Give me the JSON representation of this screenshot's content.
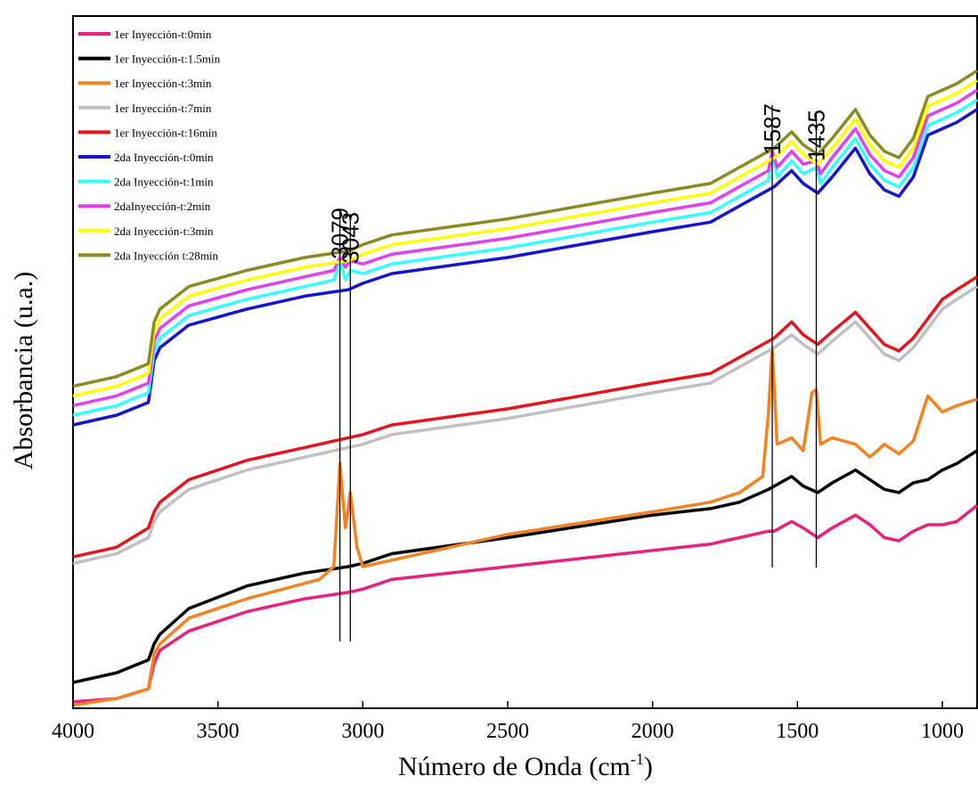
{
  "chart_data": {
    "type": "line",
    "title": "",
    "xlabel": "Número de Onda (cm",
    "xlabel_sup": "-1",
    "xlabel_close": ")",
    "ylabel": "Absorbancia (u.a.)",
    "xlim": [
      4000,
      880
    ],
    "x_reversed": true,
    "xticks": [
      4000,
      3500,
      3000,
      2500,
      2000,
      1500,
      1000
    ],
    "xtick_labels": [
      "4000",
      "3500",
      "3000",
      "2500",
      "2000",
      "1500",
      "1000"
    ],
    "yticks_shown": false,
    "grid": false,
    "legend_position": "top-left",
    "annotations": [
      {
        "x": 3079,
        "label": "3079"
      },
      {
        "x": 3043,
        "label": "3043"
      },
      {
        "x": 1587,
        "label": "1587"
      },
      {
        "x": 1435,
        "label": "1435"
      }
    ],
    "series": [
      {
        "name": "1er Inyección-t:0min",
        "color": "#e8207e",
        "x": [
          4000,
          3850,
          3740,
          3720,
          3700,
          3600,
          3400,
          3200,
          3050,
          3000,
          2900,
          2500,
          2000,
          1800,
          1700,
          1600,
          1580,
          1520,
          1480,
          1430,
          1380,
          1300,
          1250,
          1200,
          1150,
          1100,
          1050,
          1000,
          950,
          880
        ],
        "y": [
          2,
          3,
          6,
          14,
          18,
          24,
          30,
          34,
          36,
          37,
          40,
          44,
          49,
          51,
          53,
          55,
          55,
          58,
          56,
          53,
          56,
          60,
          57,
          53,
          52,
          55,
          57,
          57,
          58,
          63
        ]
      },
      {
        "name": "1er Inyección-t:1.5min",
        "color": "#000000",
        "x": [
          4000,
          3850,
          3740,
          3720,
          3700,
          3600,
          3400,
          3200,
          3050,
          3000,
          2900,
          2500,
          2000,
          1800,
          1700,
          1600,
          1580,
          1520,
          1480,
          1430,
          1380,
          1300,
          1250,
          1200,
          1150,
          1100,
          1050,
          1000,
          950,
          880
        ],
        "y": [
          8,
          11,
          15,
          20,
          23,
          31,
          38,
          42,
          44,
          45,
          48,
          53,
          60,
          62,
          64,
          68,
          69,
          72,
          69,
          67,
          70,
          74,
          71,
          68,
          67,
          70,
          71,
          74,
          76,
          80
        ]
      },
      {
        "name": "1er Inyección-t:3min",
        "color": "#f58220",
        "x": [
          4000,
          3850,
          3740,
          3720,
          3700,
          3600,
          3400,
          3150,
          3100,
          3079,
          3060,
          3043,
          3020,
          3000,
          2900,
          2500,
          2000,
          1800,
          1700,
          1620,
          1600,
          1587,
          1570,
          1520,
          1480,
          1450,
          1435,
          1420,
          1380,
          1300,
          1250,
          1200,
          1150,
          1100,
          1050,
          1000,
          950,
          880
        ],
        "y": [
          1,
          3,
          6,
          17,
          20,
          28,
          34,
          40,
          44,
          76,
          56,
          67,
          50,
          44,
          46,
          54,
          61,
          64,
          67,
          72,
          92,
          112,
          82,
          84,
          80,
          98,
          99,
          82,
          84,
          82,
          78,
          82,
          79,
          83,
          97,
          92,
          94,
          96
        ]
      },
      {
        "name": "1er Inyección-t:7min",
        "color": "#c0c0c0",
        "x": [
          4000,
          3850,
          3740,
          3720,
          3700,
          3600,
          3400,
          3200,
          3050,
          3000,
          2900,
          2500,
          2000,
          1800,
          1700,
          1600,
          1580,
          1520,
          1480,
          1430,
          1380,
          1300,
          1250,
          1200,
          1150,
          1100,
          1050,
          1000,
          950,
          880
        ],
        "y": [
          45,
          48,
          53,
          58,
          61,
          68,
          74,
          78,
          81,
          82,
          85,
          90,
          98,
          101,
          106,
          111,
          112,
          116,
          113,
          110,
          114,
          120,
          115,
          110,
          108,
          112,
          118,
          124,
          127,
          131
        ]
      },
      {
        "name": "1er Inyección-t:16min",
        "color": "#e8141a",
        "x": [
          4000,
          3850,
          3740,
          3720,
          3700,
          3600,
          3400,
          3200,
          3050,
          3000,
          2900,
          2500,
          2000,
          1800,
          1700,
          1600,
          1580,
          1520,
          1480,
          1430,
          1380,
          1300,
          1250,
          1200,
          1150,
          1100,
          1050,
          1000,
          950,
          880
        ],
        "y": [
          47,
          50,
          56,
          61,
          64,
          71,
          77,
          81,
          84,
          85,
          88,
          93,
          101,
          104,
          109,
          114,
          115,
          120,
          116,
          113,
          117,
          123,
          118,
          113,
          111,
          115,
          121,
          127,
          130,
          134
        ]
      },
      {
        "name": "2da Inyección-t:0min",
        "color": "#1414d2",
        "x": [
          4000,
          3850,
          3740,
          3720,
          3700,
          3600,
          3400,
          3200,
          3050,
          3000,
          2900,
          2500,
          2000,
          1800,
          1700,
          1600,
          1580,
          1520,
          1480,
          1430,
          1380,
          1300,
          1250,
          1200,
          1150,
          1100,
          1050,
          1000,
          950,
          880
        ],
        "y": [
          88,
          91,
          95,
          108,
          112,
          119,
          124,
          128,
          130,
          132,
          135,
          140,
          148,
          151,
          156,
          161,
          162,
          167,
          163,
          160,
          165,
          174,
          166,
          161,
          159,
          165,
          178,
          180,
          182,
          186
        ]
      },
      {
        "name": "2da Inyección-t:1min",
        "color": "#33ffff",
        "x": [
          4000,
          3850,
          3740,
          3720,
          3700,
          3600,
          3400,
          3200,
          3100,
          3079,
          3060,
          3043,
          3000,
          2900,
          2500,
          2000,
          1800,
          1700,
          1600,
          1587,
          1570,
          1520,
          1480,
          1435,
          1420,
          1380,
          1300,
          1250,
          1200,
          1150,
          1100,
          1050,
          1000,
          950,
          880
        ],
        "y": [
          91,
          94,
          98,
          111,
          115,
          122,
          127,
          131,
          133,
          139,
          133,
          136,
          135,
          138,
          143,
          151,
          154,
          159,
          164,
          174,
          165,
          170,
          166,
          168,
          163,
          168,
          177,
          169,
          164,
          162,
          168,
          181,
          183,
          185,
          189
        ]
      },
      {
        "name": "2daInyección-t:2min",
        "color": "#e040f0",
        "x": [
          4000,
          3850,
          3740,
          3720,
          3700,
          3600,
          3400,
          3200,
          3100,
          3079,
          3060,
          3043,
          3000,
          2900,
          2500,
          2000,
          1800,
          1700,
          1600,
          1587,
          1570,
          1520,
          1480,
          1435,
          1420,
          1380,
          1300,
          1250,
          1200,
          1150,
          1100,
          1050,
          1000,
          950,
          880
        ],
        "y": [
          94,
          97,
          101,
          114,
          118,
          125,
          130,
          134,
          136,
          140,
          137,
          139,
          138,
          141,
          146,
          154,
          157,
          162,
          167,
          173,
          168,
          173,
          169,
          170,
          166,
          171,
          180,
          172,
          167,
          165,
          171,
          184,
          186,
          188,
          192
        ]
      },
      {
        "name": "2da Inyección-t:3min",
        "color": "#ffff00",
        "x": [
          4000,
          3850,
          3740,
          3720,
          3700,
          3600,
          3400,
          3200,
          3050,
          3000,
          2900,
          2500,
          2000,
          1800,
          1700,
          1600,
          1580,
          1520,
          1480,
          1430,
          1380,
          1300,
          1250,
          1200,
          1150,
          1100,
          1050,
          1000,
          950,
          880
        ],
        "y": [
          97,
          100,
          104,
          117,
          121,
          128,
          133,
          137,
          139,
          141,
          144,
          149,
          157,
          160,
          165,
          170,
          171,
          176,
          172,
          169,
          174,
          183,
          175,
          170,
          168,
          174,
          187,
          189,
          191,
          195
        ]
      },
      {
        "name": "2da Inyección t:28min",
        "color": "#8a8a1e",
        "x": [
          4000,
          3850,
          3740,
          3720,
          3700,
          3600,
          3400,
          3200,
          3050,
          3000,
          2900,
          2500,
          2000,
          1800,
          1700,
          1600,
          1580,
          1520,
          1480,
          1430,
          1380,
          1300,
          1250,
          1200,
          1150,
          1100,
          1050,
          1000,
          950,
          880
        ],
        "y": [
          100,
          103,
          107,
          120,
          124,
          131,
          136,
          140,
          142,
          144,
          147,
          152,
          160,
          163,
          168,
          173,
          174,
          179,
          175,
          172,
          177,
          186,
          178,
          173,
          171,
          177,
          190,
          192,
          194,
          198
        ]
      }
    ]
  }
}
